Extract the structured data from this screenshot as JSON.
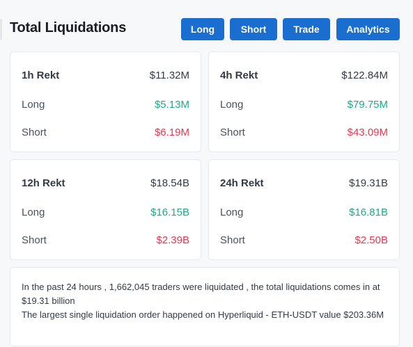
{
  "header": {
    "title": "Total Liquidations",
    "buttons": {
      "long": "Long",
      "short": "Short",
      "trade": "Trade",
      "analytics": "Analytics"
    }
  },
  "cards": [
    {
      "period": "1h Rekt",
      "total": "$11.32M",
      "long_label": "Long",
      "long_value": "$5.13M",
      "short_label": "Short",
      "short_value": "$6.19M"
    },
    {
      "period": "4h Rekt",
      "total": "$122.84M",
      "long_label": "Long",
      "long_value": "$79.75M",
      "short_label": "Short",
      "short_value": "$43.09M"
    },
    {
      "period": "12h Rekt",
      "total": "$18.54B",
      "long_label": "Long",
      "long_value": "$16.15B",
      "short_label": "Short",
      "short_value": "$2.39B"
    },
    {
      "period": "24h Rekt",
      "total": "$19.31B",
      "long_label": "Long",
      "long_value": "$16.81B",
      "short_label": "Short",
      "short_value": "$2.50B"
    }
  ],
  "summary": {
    "line1": "In the past 24 hours , 1,662,045 traders were liquidated , the total liquidations comes in at $19.31 billion",
    "line2": "The largest single liquidation order happened on Hyperliquid - ETH-USDT value $203.36M"
  },
  "colors": {
    "accent": "#1a6ed0",
    "long": "#1aab8a",
    "short": "#e5384f"
  }
}
